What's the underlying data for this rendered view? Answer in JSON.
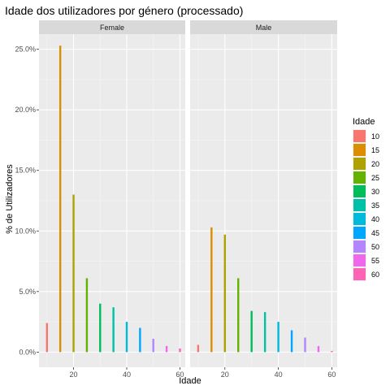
{
  "chart_data": {
    "type": "bar",
    "title": "Idade dos utilizadores por género (processado)",
    "xlabel": "Idade",
    "ylabel": "% de Utilizadores",
    "xlim": [
      7,
      62
    ],
    "ylim": [
      -0.0125,
      0.2625
    ],
    "x_ticks": [
      20,
      40,
      60
    ],
    "x_tick_labels": [
      "20",
      "40",
      "60"
    ],
    "y_ticks": [
      0,
      0.05,
      0.1,
      0.15,
      0.2,
      0.25
    ],
    "y_tick_labels": [
      "0.0%",
      "5.0%",
      "10.0%",
      "15.0%",
      "20.0%",
      "25.0%"
    ],
    "grid": true,
    "legend": {
      "title": "Idade",
      "position": "right",
      "entries": [
        "10",
        "15",
        "20",
        "25",
        "30",
        "35",
        "40",
        "45",
        "50",
        "55",
        "60"
      ]
    },
    "categories": [
      10,
      15,
      20,
      25,
      30,
      35,
      40,
      45,
      50,
      55,
      60
    ],
    "colors": [
      "#F8766D",
      "#DB8E00",
      "#AEA200",
      "#64B200",
      "#00BD5C",
      "#00C1A7",
      "#00BADE",
      "#00A6FF",
      "#B385FF",
      "#EF67EB",
      "#FF63B6"
    ],
    "facets": [
      {
        "label": "Female",
        "values": [
          0.024,
          0.253,
          0.13,
          0.061,
          0.04,
          0.037,
          0.025,
          0.02,
          0.011,
          0.005,
          0.003
        ]
      },
      {
        "label": "Male",
        "values": [
          0.006,
          0.103,
          0.097,
          0.061,
          0.034,
          0.033,
          0.025,
          0.018,
          0.012,
          0.005,
          0.001
        ]
      }
    ]
  }
}
